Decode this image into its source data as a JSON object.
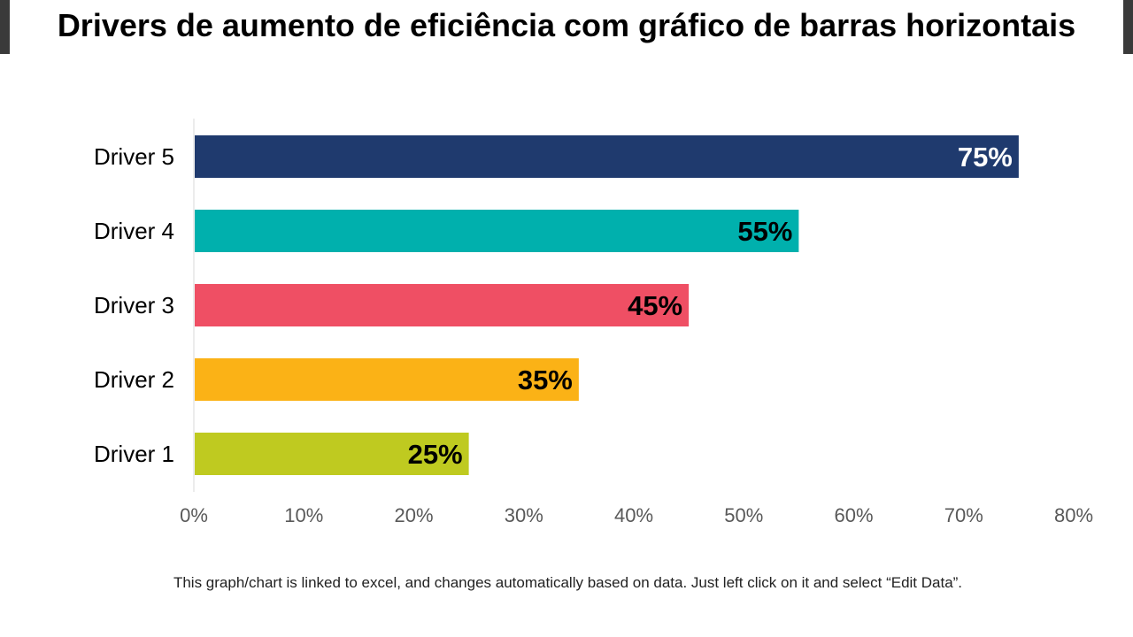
{
  "page": {
    "title": "Drivers de aumento de eficiência com gráfico de barras horizontais",
    "footnote": "This graph/chart is linked to excel, and changes automatically based on data. Just left click on it and select “Edit Data”."
  },
  "chart_data": {
    "type": "bar",
    "orientation": "horizontal",
    "title": "",
    "xlabel": "",
    "ylabel": "",
    "categories": [
      "Driver 5",
      "Driver 4",
      "Driver 3",
      "Driver 2",
      "Driver 1"
    ],
    "values": [
      75,
      55,
      45,
      35,
      25
    ],
    "data_labels": [
      "75%",
      "55%",
      "45%",
      "35%",
      "25%"
    ],
    "colors": [
      "#1f3a6e",
      "#00b0ad",
      "#ef4f64",
      "#fbb216",
      "#bfca20"
    ],
    "label_colors": [
      "#ffffff",
      "#000000",
      "#000000",
      "#000000",
      "#000000"
    ],
    "xlim": [
      0,
      80
    ],
    "x_ticks": [
      0,
      10,
      20,
      30,
      40,
      50,
      60,
      70,
      80
    ],
    "x_tick_labels": [
      "0%",
      "10%",
      "20%",
      "30%",
      "40%",
      "50%",
      "60%",
      "70%",
      "80%"
    ],
    "grid": false,
    "legend": "none"
  }
}
